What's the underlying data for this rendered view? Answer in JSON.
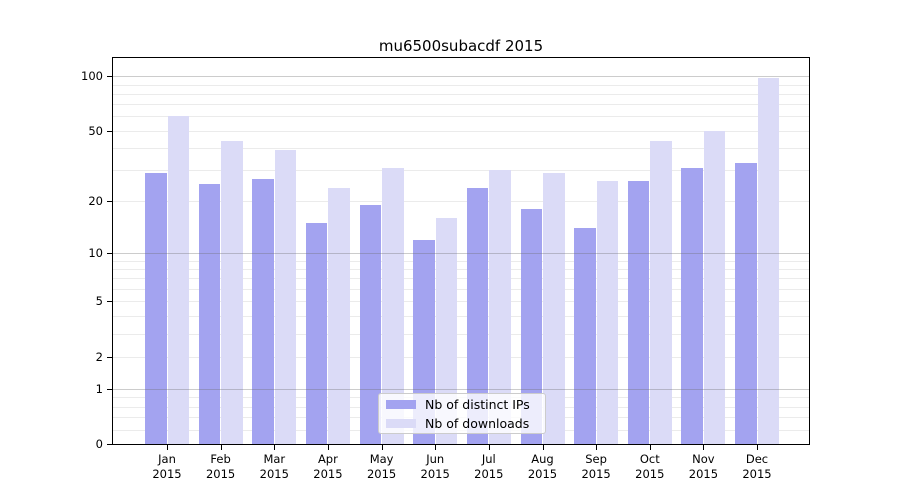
{
  "header": {
    "title": "mu6500subacdf 2015"
  },
  "chart_data": {
    "type": "bar",
    "title": "mu6500subacdf 2015",
    "categories": [
      "Jan",
      "Feb",
      "Mar",
      "Apr",
      "May",
      "Jun",
      "Jul",
      "Aug",
      "Sep",
      "Oct",
      "Nov",
      "Dec"
    ],
    "category_year": "2015",
    "series": [
      {
        "name": "Nb of distinct IPs",
        "color": "#a3a3f0",
        "values": [
          29,
          25,
          27,
          15,
          19,
          12,
          24,
          18,
          14,
          26,
          31,
          33
        ]
      },
      {
        "name": "Nb of downloads",
        "color": "#dbdbf7",
        "values": [
          60,
          44,
          39,
          24,
          31,
          16,
          30,
          29,
          26,
          44,
          50,
          98
        ]
      }
    ],
    "xlabel": "",
    "ylabel": "",
    "y_scale": "log10(1+y)",
    "ylim": [
      0,
      126
    ],
    "y_ticks": [
      0,
      1,
      2,
      5,
      10,
      20,
      50,
      100
    ],
    "y_major_gridlines": [
      1,
      10,
      100
    ],
    "y_minor_gridlines": [
      0.2,
      0.4,
      0.6,
      0.8,
      2,
      3,
      4,
      5,
      6,
      7,
      8,
      9,
      20,
      30,
      40,
      50,
      60,
      70,
      80,
      90
    ],
    "grid": true,
    "legend_position": "lower center",
    "legend": [
      "Nb of distinct IPs",
      "Nb of downloads"
    ]
  },
  "colors": {
    "background": "#ffffff",
    "spine": "#000000",
    "minor_grid": "#ebebeb",
    "major_grid": "#6e6e6e",
    "series_dark": "#a3a3f0",
    "series_light": "#dbdbf7",
    "legend_border": "#cccccc"
  }
}
